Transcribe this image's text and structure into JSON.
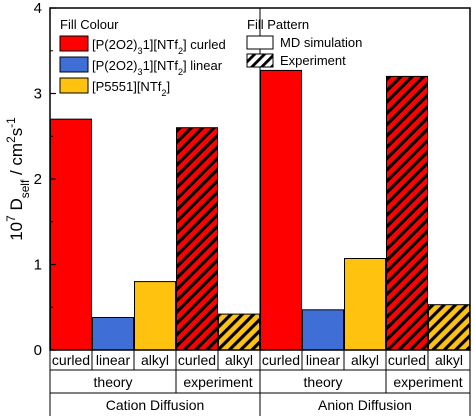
{
  "chart_data": {
    "type": "bar",
    "ylabel_parts": [
      {
        "t": "10",
        "s": "n"
      },
      {
        "t": "7",
        "s": "sup"
      },
      {
        "t": " D",
        "s": "n"
      },
      {
        "t": "self",
        "s": "sub"
      },
      {
        "t": " / cm",
        "s": "n"
      },
      {
        "t": "2",
        "s": "sup"
      },
      {
        "t": "s",
        "s": "n"
      },
      {
        "t": "-1",
        "s": "sup"
      }
    ],
    "ylim": [
      0,
      4
    ],
    "yticks": [
      "0",
      "1",
      "2",
      "3",
      "4"
    ],
    "bars": [
      {
        "label": "curled",
        "value": 2.7,
        "fill": "red",
        "pattern": "solid"
      },
      {
        "label": "linear",
        "value": 0.38,
        "fill": "blue",
        "pattern": "solid"
      },
      {
        "label": "alkyl",
        "value": 0.8,
        "fill": "yellow",
        "pattern": "solid"
      },
      {
        "label": "curled",
        "value": 2.6,
        "fill": "red",
        "pattern": "hatched"
      },
      {
        "label": "alkyl",
        "value": 0.42,
        "fill": "yellow",
        "pattern": "hatched"
      },
      {
        "label": "curled",
        "value": 3.27,
        "fill": "red",
        "pattern": "solid"
      },
      {
        "label": "linear",
        "value": 0.47,
        "fill": "blue",
        "pattern": "solid"
      },
      {
        "label": "alkyl",
        "value": 1.07,
        "fill": "yellow",
        "pattern": "solid"
      },
      {
        "label": "curled",
        "value": 3.2,
        "fill": "red",
        "pattern": "hatched"
      },
      {
        "label": "alkyl",
        "value": 0.53,
        "fill": "yellow",
        "pattern": "hatched"
      }
    ],
    "subgroups": [
      "theory",
      "experiment",
      "theory",
      "experiment"
    ],
    "groups": [
      "Cation Diffusion",
      "Anion Diffusion"
    ],
    "legend_fill": {
      "title": "Fill Colour",
      "entries": [
        {
          "key": "red",
          "parts": [
            {
              "t": "[P(2O2)",
              "s": "n"
            },
            {
              "t": "3",
              "s": "sub"
            },
            {
              "t": "1][NTf",
              "s": "n"
            },
            {
              "t": "2",
              "s": "sub"
            },
            {
              "t": "] curled",
              "s": "n"
            }
          ]
        },
        {
          "key": "blue",
          "parts": [
            {
              "t": "[P(2O2)",
              "s": "n"
            },
            {
              "t": "3",
              "s": "sub"
            },
            {
              "t": "1][NTf",
              "s": "n"
            },
            {
              "t": "2",
              "s": "sub"
            },
            {
              "t": "] linear",
              "s": "n"
            }
          ]
        },
        {
          "key": "yellow",
          "parts": [
            {
              "t": "[P5551][NTf",
              "s": "n"
            },
            {
              "t": "2",
              "s": "sub"
            },
            {
              "t": "]",
              "s": "n"
            }
          ]
        }
      ]
    },
    "legend_pattern": {
      "title": "Fill Pattern",
      "entries": [
        {
          "key": "solid",
          "label": "MD simulation"
        },
        {
          "key": "hatched",
          "label": "Experiment"
        }
      ]
    }
  },
  "colors": {
    "red": "#ff0000",
    "blue": "#3f6fd6",
    "yellow": "#ffc20e",
    "hatch": "#000000",
    "axis": "#000000"
  }
}
